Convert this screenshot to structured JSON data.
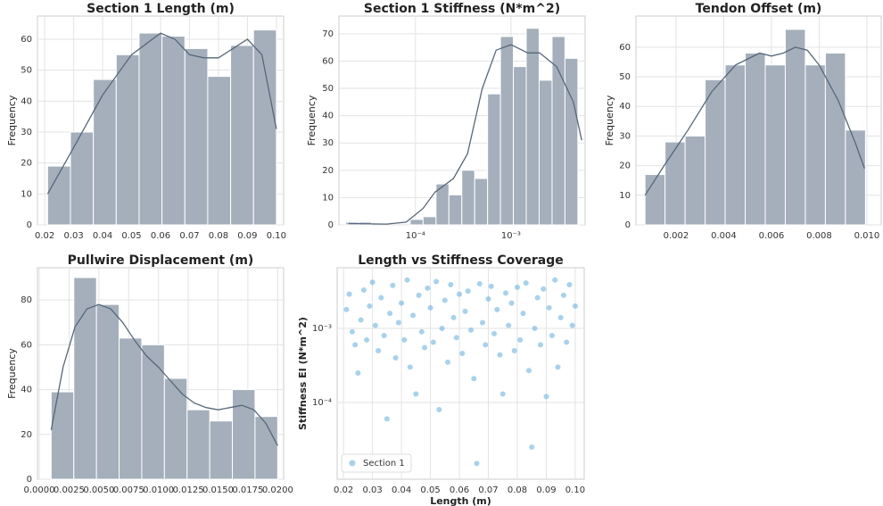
{
  "chart_data": [
    {
      "type": "histogram",
      "title": "Section 1 Length (m)",
      "ylabel": "Frequency",
      "bins": [
        0.021,
        0.0289,
        0.0368,
        0.0447,
        0.0526,
        0.0605,
        0.0684,
        0.0763,
        0.0842,
        0.0921,
        0.1
      ],
      "values": [
        19,
        30,
        47,
        55,
        62,
        61,
        57,
        48,
        58,
        63
      ],
      "kde": {
        "x": [
          0.021,
          0.03,
          0.04,
          0.05,
          0.06,
          0.065,
          0.07,
          0.075,
          0.08,
          0.085,
          0.09,
          0.095,
          0.1
        ],
        "values": [
          10,
          25,
          42,
          55,
          62,
          60,
          55,
          54,
          54,
          57,
          60,
          55,
          31
        ]
      },
      "color": "#a4afbb",
      "line_color": "#56677a",
      "grid": true,
      "xlim": [
        0.0175,
        0.1025
      ],
      "xticks": [
        0.02,
        0.03,
        0.04,
        0.05,
        0.06,
        0.07,
        0.08,
        0.09,
        {
          "value": 0.1,
          "label": "0.10"
        }
      ],
      "ylim": [
        0,
        67.5
      ],
      "yticks": [
        0,
        10,
        20,
        30,
        40,
        50,
        60
      ]
    },
    {
      "type": "histogram",
      "title": "Section 1 Stiffness (N*m^2)",
      "ylabel": "Frequency",
      "xscale": "log",
      "bins": [
        1.862e-05,
        2.541e-05,
        3.467e-05,
        4.732e-05,
        6.457e-05,
        8.81e-05,
        0.0001202,
        0.0001641,
        0.0002239,
        0.0003055,
        0.0004169,
        0.0005689,
        0.0007762,
        0.001059,
        0.001445,
        0.001972,
        0.002692,
        0.003673,
        0.005012
      ],
      "values": [
        1,
        1,
        0,
        0,
        0,
        2,
        3,
        15,
        11,
        20,
        17,
        48,
        69,
        58,
        72,
        53,
        69,
        61
      ],
      "kde": {
        "x": [
          2e-05,
          5e-05,
          8e-05,
          0.00012,
          0.00016,
          0.00025,
          0.00035,
          0.0005,
          0.0007,
          0.001,
          0.0015,
          0.002,
          0.003,
          0.0045,
          0.0055
        ],
        "values": [
          0.5,
          0.3,
          1,
          6,
          12,
          17,
          26,
          50,
          64,
          66,
          63,
          63,
          58,
          45,
          31
        ]
      },
      "color": "#a4afbb",
      "line_color": "#56677a",
      "grid": true,
      "xlim": [
        1.58e-05,
        0.00597
      ],
      "xticks": [
        {
          "value": 0.0001,
          "label": "10⁻⁴"
        },
        {
          "value": 0.001,
          "label": "10⁻³"
        }
      ],
      "ylim": [
        0,
        76.5
      ],
      "yticks": [
        0,
        10,
        20,
        30,
        40,
        50,
        60,
        70
      ]
    },
    {
      "type": "histogram",
      "title": "Tendon Offset (m)",
      "ylabel": "Frequency",
      "bins": [
        0.0007,
        0.00154,
        0.00238,
        0.00322,
        0.00406,
        0.0049,
        0.00574,
        0.00658,
        0.00742,
        0.00826,
        0.0091,
        0.00994
      ],
      "values": [
        17,
        28,
        30,
        49,
        54,
        58,
        54,
        66,
        54,
        58,
        32
      ],
      "kde": {
        "x": [
          0.0007,
          0.0015,
          0.0025,
          0.0035,
          0.0045,
          0.0055,
          0.006,
          0.0065,
          0.007,
          0.0075,
          0.008,
          0.0088,
          0.0095,
          0.0099
        ],
        "values": [
          10,
          20,
          32,
          45,
          54,
          58,
          57,
          58,
          60,
          59,
          54,
          42,
          28,
          19
        ]
      },
      "color": "#a4afbb",
      "line_color": "#56677a",
      "grid": true,
      "xlim": [
        0.00032,
        0.0106
      ],
      "xticks": [
        0.002,
        0.004,
        0.006,
        0.008,
        {
          "value": 0.01,
          "label": "0.010"
        }
      ],
      "ylim": [
        0,
        70.5
      ],
      "yticks": [
        0,
        10,
        20,
        30,
        40,
        50,
        60
      ]
    },
    {
      "type": "histogram",
      "title": "Pullwire Displacement (m)",
      "ylabel": "Frequency",
      "bins": [
        0.001,
        0.0029,
        0.0048,
        0.0067,
        0.0086,
        0.0105,
        0.0124,
        0.0143,
        0.0162,
        0.0181,
        0.02
      ],
      "values": [
        39,
        90,
        78,
        63,
        60,
        45,
        31,
        26,
        40,
        28
      ],
      "kde": {
        "x": [
          0.001,
          0.002,
          0.003,
          0.004,
          0.005,
          0.006,
          0.007,
          0.008,
          0.009,
          0.01,
          0.011,
          0.012,
          0.013,
          0.014,
          0.015,
          0.016,
          0.017,
          0.018,
          0.019,
          0.02
        ],
        "values": [
          22,
          50,
          68,
          76,
          78,
          76,
          70,
          62,
          55,
          50,
          44,
          38,
          34,
          32,
          31,
          32,
          33,
          31,
          25,
          15
        ]
      },
      "color": "#a4afbb",
      "line_color": "#56677a",
      "grid": true,
      "xlim": [
        -0.00015,
        0.0205
      ],
      "xticks": [
        {
          "value": 0,
          "label": "0.0000"
        },
        0.0025,
        {
          "value": 0.005,
          "label": "0.0050"
        },
        0.0075,
        {
          "value": 0.01,
          "label": "0.0100"
        },
        0.0125,
        {
          "value": 0.015,
          "label": "0.0150"
        },
        0.0175,
        {
          "value": 0.02,
          "label": "0.0200"
        }
      ],
      "ylim": [
        0,
        94.4
      ],
      "yticks": [
        0,
        20,
        40,
        60,
        80
      ]
    },
    {
      "type": "scatter",
      "title": "Length vs Stiffness Coverage",
      "xlabel": "Length (m)",
      "ylabel": "Stiffness EI (N*m^2)",
      "yscale": "log",
      "legend": "lower left",
      "grid": true,
      "series": [
        {
          "name": "Section 1",
          "color": "#5dade2",
          "x": [
            0.021,
            0.022,
            0.023,
            0.024,
            0.025,
            0.026,
            0.027,
            0.028,
            0.029,
            0.03,
            0.031,
            0.032,
            0.033,
            0.034,
            0.035,
            0.036,
            0.037,
            0.038,
            0.039,
            0.04,
            0.041,
            0.042,
            0.043,
            0.044,
            0.045,
            0.046,
            0.047,
            0.048,
            0.049,
            0.05,
            0.051,
            0.052,
            0.053,
            0.054,
            0.055,
            0.056,
            0.057,
            0.058,
            0.059,
            0.06,
            0.061,
            0.062,
            0.063,
            0.064,
            0.065,
            0.066,
            0.067,
            0.068,
            0.069,
            0.07,
            0.071,
            0.072,
            0.073,
            0.074,
            0.075,
            0.076,
            0.077,
            0.078,
            0.079,
            0.08,
            0.081,
            0.082,
            0.083,
            0.084,
            0.085,
            0.086,
            0.087,
            0.088,
            0.089,
            0.09,
            0.091,
            0.092,
            0.093,
            0.094,
            0.095,
            0.096,
            0.097,
            0.098,
            0.099,
            0.1
          ],
          "values": [
            0.0018,
            0.0029,
            0.0009,
            0.0006,
            0.00025,
            0.0013,
            0.0033,
            0.0007,
            0.002,
            0.0042,
            0.0011,
            0.0005,
            0.0026,
            0.0008,
            6e-05,
            0.0016,
            0.0038,
            0.0004,
            0.0012,
            0.0022,
            0.0007,
            0.0045,
            0.0003,
            0.0015,
            0.00013,
            0.0028,
            0.0009,
            0.00055,
            0.0035,
            0.0019,
            0.00065,
            0.0043,
            8e-05,
            0.001,
            0.0024,
            0.00035,
            0.0039,
            0.0014,
            0.00075,
            0.0029,
            0.00046,
            0.0017,
            0.0032,
            0.00095,
            0.00021,
            1.5e-05,
            0.004,
            0.0012,
            0.0006,
            0.0025,
            0.0037,
            0.00085,
            0.0018,
            0.00044,
            0.00013,
            0.003,
            0.0011,
            0.0022,
            0.0005,
            0.0036,
            0.0007,
            0.0016,
            0.0041,
            0.00027,
            2.5e-05,
            0.001,
            0.0026,
            0.0006,
            0.0034,
            0.00012,
            0.0019,
            0.0008,
            0.0045,
            0.0003,
            0.0014,
            0.0028,
            0.00065,
            0.0039,
            0.0011,
            0.002
          ]
        }
      ],
      "xlim": [
        0.0178,
        0.1031
      ],
      "xticks": [
        0.02,
        0.03,
        0.04,
        0.05,
        0.06,
        0.07,
        0.08,
        0.09,
        {
          "value": 0.1,
          "label": "0.10"
        }
      ],
      "ylim": [
        9.2e-06,
        0.0066
      ],
      "yticks": [
        {
          "value": 0.0001,
          "label": "10⁻⁴"
        },
        {
          "value": 0.001,
          "label": "10⁻³"
        }
      ]
    }
  ]
}
